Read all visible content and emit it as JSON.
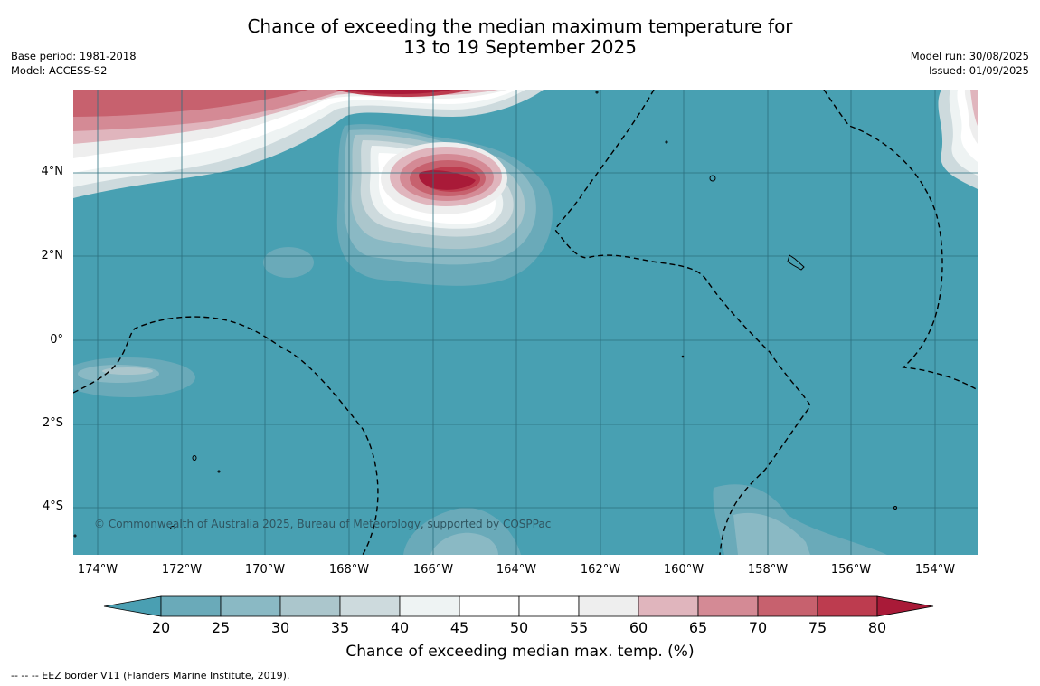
{
  "title": {
    "line1": "Chance of exceeding the median maximum temperature for",
    "line2": "13 to 19 September 2025"
  },
  "meta": {
    "base_period": "Base period: 1981-2018",
    "model": "Model: ACCESS-S2",
    "model_run": "Model run: 30/08/2025",
    "issued": "Issued: 01/09/2025"
  },
  "map": {
    "lat_labels": [
      "4°N",
      "2°N",
      "0°",
      "2°S",
      "4°S"
    ],
    "lon_labels": [
      "174°W",
      "172°W",
      "170°W",
      "168°W",
      "166°W",
      "164°W",
      "162°W",
      "160°W",
      "158°W",
      "156°W",
      "154°W"
    ],
    "copyright": "© Commonwealth of Australia 2025, Bureau of Meteorology, supported by COSPPac",
    "colors": {
      "ocean_base": "#48a0b2",
      "hot": "#b01c3a",
      "eez_border": "#000000"
    }
  },
  "colorbar": {
    "ticks": [
      "20",
      "25",
      "30",
      "35",
      "40",
      "45",
      "50",
      "55",
      "60",
      "65",
      "70",
      "75",
      "80"
    ],
    "colors": [
      "#4a9fb2",
      "#6aaab9",
      "#8ab9c4",
      "#abc6cc",
      "#cddadd",
      "#eef3f3",
      "#ffffff",
      "#ffffff",
      "#eeeeee",
      "#e0b5bd",
      "#d48a95",
      "#c7616e",
      "#bd3c4f",
      "#a91a38"
    ],
    "label": "Chance of exceeding median max. temp. (%)"
  },
  "footnote": "--  --  -- EEZ border V11 (Flanders Marine Institute, 2019)."
}
